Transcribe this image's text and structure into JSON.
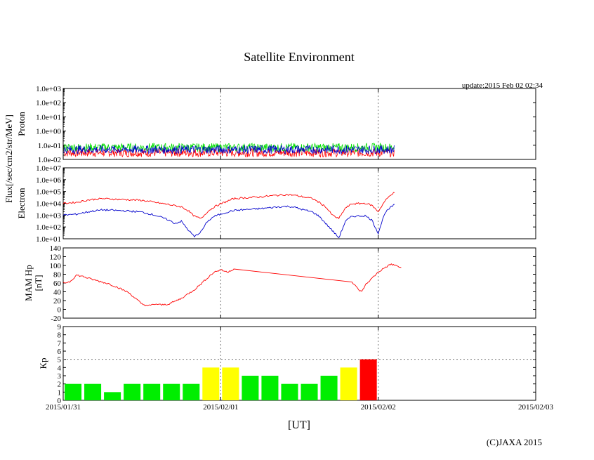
{
  "chart_data": {
    "type": "line",
    "title": "Satellite Environment",
    "update_text": "update:2015 Feb 02 02:34",
    "copyright": "(C)JAXA 2015",
    "xlabel": "[UT]",
    "x_tick_labels": [
      "2015/01/31",
      "2015/02/01",
      "2015/02/02",
      "2015/02/03"
    ],
    "x_range_hours": [
      0,
      72
    ],
    "x_grid_hours": [
      24,
      48
    ],
    "shared_ylabel": "Flux[/sec/cm2/str/MeV]",
    "panels": [
      {
        "name": "proton",
        "ylabel": "Proton",
        "scale": "log",
        "ylim": [
          0.01,
          1000
        ],
        "tick_labels": [
          "1.0e+03",
          "1.0e+02",
          "1.0e+01",
          "1.0e+00",
          "1.0e-01",
          "1.0e-02"
        ],
        "series": [
          {
            "name": "proton-red",
            "color": "#ff0000",
            "approx_level": 0.03,
            "x_end_hours": 50.5
          },
          {
            "name": "proton-green",
            "color": "#00dd00",
            "approx_level": 0.07,
            "x_end_hours": 50.5
          },
          {
            "name": "proton-blue",
            "color": "#0000cc",
            "approx_level": 0.05,
            "x_end_hours": 50.5
          }
        ]
      },
      {
        "name": "electron",
        "ylabel": "Electron",
        "scale": "log",
        "ylim": [
          10,
          10000000
        ],
        "tick_labels": [
          "1.0e+07",
          "1.0e+06",
          "1.0e+05",
          "1.0e+04",
          "1.0e+03",
          "1.0e+02",
          "1.0e+01"
        ],
        "series": [
          {
            "name": "electron-high",
            "color": "#ff0000",
            "points": [
              [
                0,
                10000
              ],
              [
                2,
                12000
              ],
              [
                4,
                20000
              ],
              [
                6,
                25000
              ],
              [
                8,
                22000
              ],
              [
                10,
                20000
              ],
              [
                12,
                18000
              ],
              [
                14,
                12000
              ],
              [
                16,
                8000
              ],
              [
                18,
                5000
              ],
              [
                19,
                2500
              ],
              [
                20,
                800
              ],
              [
                21,
                500
              ],
              [
                22,
                2000
              ],
              [
                23,
                5000
              ],
              [
                24,
                9000
              ],
              [
                25,
                15000
              ],
              [
                26,
                25000
              ],
              [
                28,
                30000
              ],
              [
                30,
                35000
              ],
              [
                32,
                45000
              ],
              [
                34,
                55000
              ],
              [
                35,
                50000
              ],
              [
                36,
                40000
              ],
              [
                38,
                25000
              ],
              [
                39,
                12000
              ],
              [
                40,
                5000
              ],
              [
                41,
                1000
              ],
              [
                42,
                500
              ],
              [
                43,
                4000
              ],
              [
                44,
                9000
              ],
              [
                46,
                10000
              ],
              [
                47,
                7000
              ],
              [
                48,
                2000
              ],
              [
                49,
                15000
              ],
              [
                50,
                60000
              ],
              [
                50.5,
                80000
              ]
            ]
          },
          {
            "name": "electron-low",
            "color": "#0000cc",
            "points": [
              [
                0,
                1000
              ],
              [
                2,
                1200
              ],
              [
                4,
                2000
              ],
              [
                6,
                2800
              ],
              [
                8,
                2500
              ],
              [
                10,
                2200
              ],
              [
                12,
                1800
              ],
              [
                14,
                1000
              ],
              [
                16,
                400
              ],
              [
                17,
                200
              ],
              [
                18,
                300
              ],
              [
                19,
                60
              ],
              [
                20,
                15
              ],
              [
                21,
                40
              ],
              [
                22,
                300
              ],
              [
                23,
                800
              ],
              [
                24,
                1200
              ],
              [
                25,
                1800
              ],
              [
                26,
                2500
              ],
              [
                28,
                3000
              ],
              [
                30,
                3500
              ],
              [
                32,
                4500
              ],
              [
                34,
                5500
              ],
              [
                35,
                5000
              ],
              [
                36,
                3500
              ],
              [
                38,
                1800
              ],
              [
                39,
                800
              ],
              [
                40,
                200
              ],
              [
                41,
                50
              ],
              [
                42,
                12
              ],
              [
                43,
                300
              ],
              [
                44,
                800
              ],
              [
                46,
                900
              ],
              [
                47,
                400
              ],
              [
                48,
                30
              ],
              [
                49,
                1500
              ],
              [
                50,
                5000
              ],
              [
                50.5,
                8000
              ]
            ]
          }
        ]
      },
      {
        "name": "magnetometer",
        "ylabel": "MAM Hp",
        "ylabel2": "[nT]",
        "scale": "linear",
        "ylim": [
          -20,
          140
        ],
        "tick_labels": [
          "140",
          "120",
          "100",
          "80",
          "60",
          "40",
          "20",
          "0",
          "-20"
        ],
        "tick_values": [
          140,
          120,
          100,
          80,
          60,
          40,
          20,
          0,
          -20
        ],
        "series": [
          {
            "name": "mam-hp",
            "color": "#ff0000",
            "points": [
              [
                0,
                60
              ],
              [
                1,
                63
              ],
              [
                1.5,
                70
              ],
              [
                2,
                78
              ],
              [
                3,
                75
              ],
              [
                4,
                70
              ],
              [
                5,
                66
              ],
              [
                6,
                62
              ],
              [
                7,
                58
              ],
              [
                8,
                52
              ],
              [
                9,
                45
              ],
              [
                10,
                38
              ],
              [
                11,
                25
              ],
              [
                12,
                12
              ],
              [
                13,
                8
              ],
              [
                14,
                12
              ],
              [
                15,
                10
              ],
              [
                16,
                12
              ],
              [
                17,
                18
              ],
              [
                18,
                25
              ],
              [
                19,
                35
              ],
              [
                20,
                45
              ],
              [
                21,
                58
              ],
              [
                22,
                72
              ],
              [
                23,
                85
              ],
              [
                24,
                90
              ],
              [
                25,
                85
              ],
              [
                26,
                92
              ],
              [
                44,
                62
              ],
              [
                45,
                45
              ],
              [
                45.5,
                40
              ],
              [
                46,
                55
              ],
              [
                47,
                70
              ],
              [
                48,
                85
              ],
              [
                49,
                95
              ],
              [
                50,
                103
              ],
              [
                51,
                98
              ],
              [
                51.5,
                95
              ]
            ]
          }
        ]
      },
      {
        "name": "kp",
        "ylabel": "Kp",
        "scale": "linear",
        "ylim": [
          0,
          9
        ],
        "tick_labels": [
          "9",
          "8",
          "7",
          "6",
          "5",
          "4",
          "3",
          "2",
          "1",
          "0"
        ],
        "tick_values": [
          9,
          8,
          7,
          6,
          5,
          4,
          3,
          2,
          1,
          0
        ],
        "reference_line": 5,
        "bar_width_hours": 3,
        "bars": [
          2,
          2,
          1,
          2,
          2,
          2,
          2,
          4,
          4,
          3,
          3,
          2,
          2,
          3,
          4,
          5
        ],
        "colors": {
          "low": "#00ee00",
          "mid": "#ffff00",
          "high": "#ff0000"
        }
      }
    ]
  }
}
